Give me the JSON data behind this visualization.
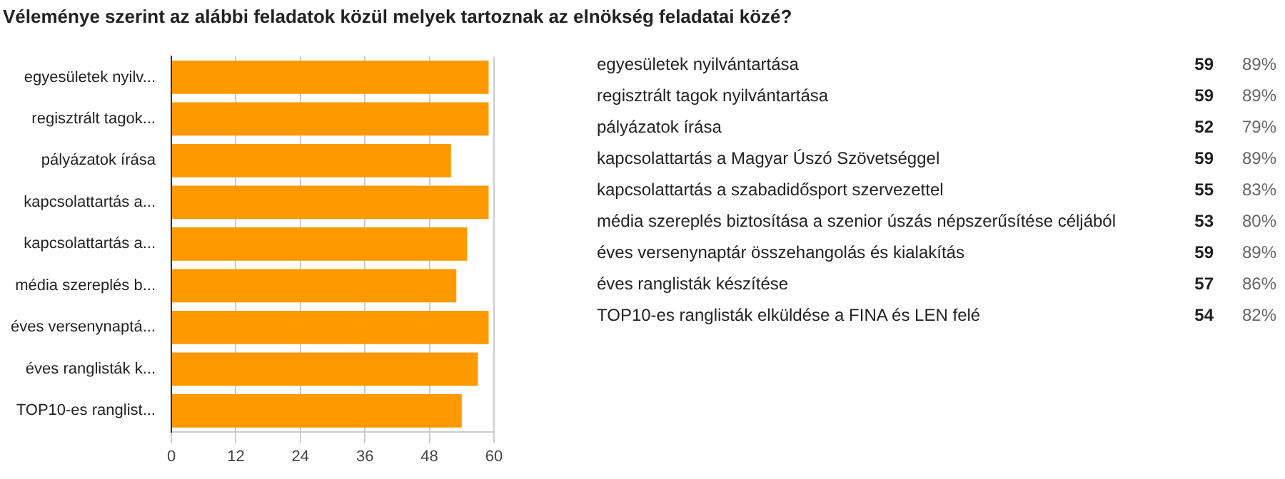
{
  "chart_data": {
    "type": "bar",
    "orientation": "horizontal",
    "title": "Véleménye szerint az alábbi feladatok közül melyek tartoznak az elnökség feladatai közé?",
    "categories": [
      "egyesületek nyilv...",
      "regisztrált tagok...",
      "pályázatok írása",
      "kapcsolattartás a...",
      "kapcsolattartás a...",
      "média szereplés b...",
      "éves versenynaptá...",
      "éves ranglisták k...",
      "TOP10-es ranglist..."
    ],
    "values": [
      59,
      59,
      52,
      59,
      55,
      53,
      59,
      57,
      54
    ],
    "color": "#ff9900",
    "xlim": [
      0,
      60
    ],
    "xticks": [
      0,
      12,
      24,
      36,
      48,
      60
    ],
    "grid": "x",
    "legend": false,
    "annotations": [
      "egyesületek nyilvántartása",
      "59",
      "89%",
      "regisztrált tagok nyilvántartása",
      "59",
      "89%",
      "pályázatok írása",
      "52",
      "79%",
      "kapcsolattartás a Magyar Úszó Szövetséggel",
      "59",
      "89%",
      "kapcsolattartás a szabadidősport szervezettel",
      "55",
      "83%",
      "média szereplés biztosítása a szenior úszás népszerűsítése céljából",
      "53",
      "80%",
      "éves versenynaptár összehangolás és kialakítás",
      "59",
      "89%",
      "éves ranglisták készítése",
      "57",
      "86%",
      "TOP10-es ranglisták elküldése a FINA és LEN felé",
      "54",
      "82%"
    ]
  }
}
